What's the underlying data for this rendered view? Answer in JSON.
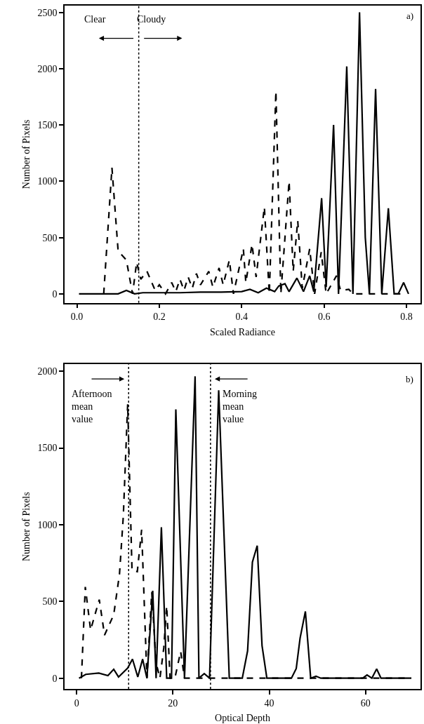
{
  "chart_data": [
    {
      "type": "line",
      "xlabel": "Scaled Radiance",
      "ylabel": "Number of Pixels",
      "xlim": [
        -0.03,
        0.834
      ],
      "xticks": [
        {
          "value": 0,
          "label": "0.0"
        },
        0.2,
        0.4,
        0.6,
        0.8
      ],
      "ylim": [
        -80,
        2560
      ],
      "yticks": [
        0,
        500,
        1000,
        1500,
        2000,
        2500
      ],
      "marker": "none",
      "ref_lines": [
        {
          "axis": "x",
          "value": 0.15,
          "label": null,
          "line_style": "dotted",
          "color": "#000000"
        }
      ],
      "annotations": [
        "Clear",
        "Cloudy",
        "a)"
      ],
      "series": [
        {
          "color": "#000000",
          "line_style": "solid",
          "x": [
            0.005,
            0.1,
            0.12,
            0.14,
            0.16,
            0.2,
            0.25,
            0.3,
            0.35,
            0.4,
            0.42,
            0.44,
            0.46,
            0.48,
            0.49,
            0.505,
            0.515,
            0.534,
            0.55,
            0.565,
            0.575,
            0.594,
            0.605,
            0.623,
            0.635,
            0.655,
            0.67,
            0.686,
            0.7,
            0.71,
            0.725,
            0.74,
            0.756,
            0.77,
            0.78,
            0.793,
            0.805
          ],
          "values": [
            0,
            0,
            30,
            0,
            10,
            10,
            10,
            15,
            15,
            20,
            40,
            10,
            50,
            20,
            70,
            90,
            20,
            140,
            20,
            160,
            20,
            850,
            60,
            1500,
            0,
            2020,
            0,
            2500,
            500,
            0,
            1820,
            0,
            760,
            0,
            0,
            100,
            0
          ]
        },
        {
          "color": "#000000",
          "line_style": "dashed",
          "x": [
            0.065,
            0.085,
            0.1,
            0.12,
            0.135,
            0.145,
            0.155,
            0.17,
            0.19,
            0.2,
            0.215,
            0.23,
            0.24,
            0.25,
            0.26,
            0.27,
            0.28,
            0.29,
            0.3,
            0.32,
            0.33,
            0.345,
            0.355,
            0.37,
            0.38,
            0.404,
            0.41,
            0.425,
            0.435,
            0.455,
            0.467,
            0.483,
            0.495,
            0.515,
            0.525,
            0.536,
            0.547,
            0.565,
            0.577,
            0.593,
            0.605,
            0.63,
            0.64,
            0.66,
            0.67,
            0.8
          ],
          "values": [
            0,
            1120,
            380,
            300,
            0,
            280,
            130,
            200,
            30,
            80,
            0,
            100,
            20,
            130,
            30,
            150,
            50,
            180,
            80,
            200,
            60,
            230,
            80,
            300,
            0,
            400,
            100,
            440,
            150,
            770,
            0,
            1800,
            0,
            1000,
            200,
            650,
            50,
            400,
            0,
            370,
            0,
            160,
            30,
            40,
            0,
            0
          ]
        }
      ]
    },
    {
      "type": "line",
      "xlabel": "Optical Depth",
      "ylabel": "Number of Pixels",
      "xlim": [
        -2.5,
        71.4
      ],
      "xticks": [
        0,
        20,
        40,
        60
      ],
      "ylim": [
        -70,
        2045
      ],
      "yticks": [
        0,
        500,
        1000,
        1500,
        2000
      ],
      "marker": "none",
      "ref_lines": [
        {
          "axis": "x",
          "value": 10.8,
          "label": null,
          "line_style": "dotted",
          "color": "#000000"
        },
        {
          "axis": "x",
          "value": 27.8,
          "label": null,
          "line_style": "dotted",
          "color": "#000000"
        }
      ],
      "annotations": [
        "Afternoon\nmean\nvalue",
        "Morning\nmean\nvalue",
        "b)"
      ],
      "series": [
        {
          "color": "#000000",
          "line_style": "solid",
          "x": [
            0.5,
            1.9,
            4.6,
            6.5,
            7.7,
            8.7,
            10.6,
            11.6,
            12.7,
            13.7,
            14.6,
            15.8,
            16.5,
            17.6,
            18.7,
            19.7,
            20.6,
            22.4,
            24.6,
            25.4,
            26.5,
            27.6,
            29.5,
            31.7,
            34.4,
            35.5,
            36.5,
            37.5,
            38.5,
            39.5,
            44.6,
            45.6,
            46.4,
            47.5,
            48.6,
            49.7,
            50.7,
            59.4,
            60.3,
            61.3,
            62.3,
            63.2,
            69.5
          ],
          "values": [
            0,
            25,
            33,
            17,
            58,
            8,
            66,
            124,
            8,
            124,
            0,
            570,
            0,
            983,
            0,
            0,
            1752,
            0,
            1967,
            0,
            30,
            0,
            1876,
            0,
            0,
            178,
            757,
            864,
            212,
            0,
            0,
            63,
            261,
            435,
            0,
            13,
            0,
            0,
            21,
            0,
            60,
            0,
            0
          ]
        },
        {
          "color": "#000000",
          "line_style": "dashed",
          "x": [
            1.0,
            1.8,
            2.9,
            4.7,
            5.8,
            7.7,
            8.9,
            9.7,
            10.6,
            11.5,
            12.6,
            13.5,
            14.6,
            15.6,
            16.5,
            17.3,
            18.1,
            18.7,
            19.4,
            20.4,
            21.6,
            22.4,
            69.5
          ],
          "values": [
            0,
            595,
            314,
            512,
            281,
            413,
            678,
            1058,
            1785,
            702,
            694,
            967,
            0,
            562,
            100,
            0,
            198,
            471,
            0,
            0,
            174,
            0,
            0
          ]
        }
      ]
    }
  ]
}
